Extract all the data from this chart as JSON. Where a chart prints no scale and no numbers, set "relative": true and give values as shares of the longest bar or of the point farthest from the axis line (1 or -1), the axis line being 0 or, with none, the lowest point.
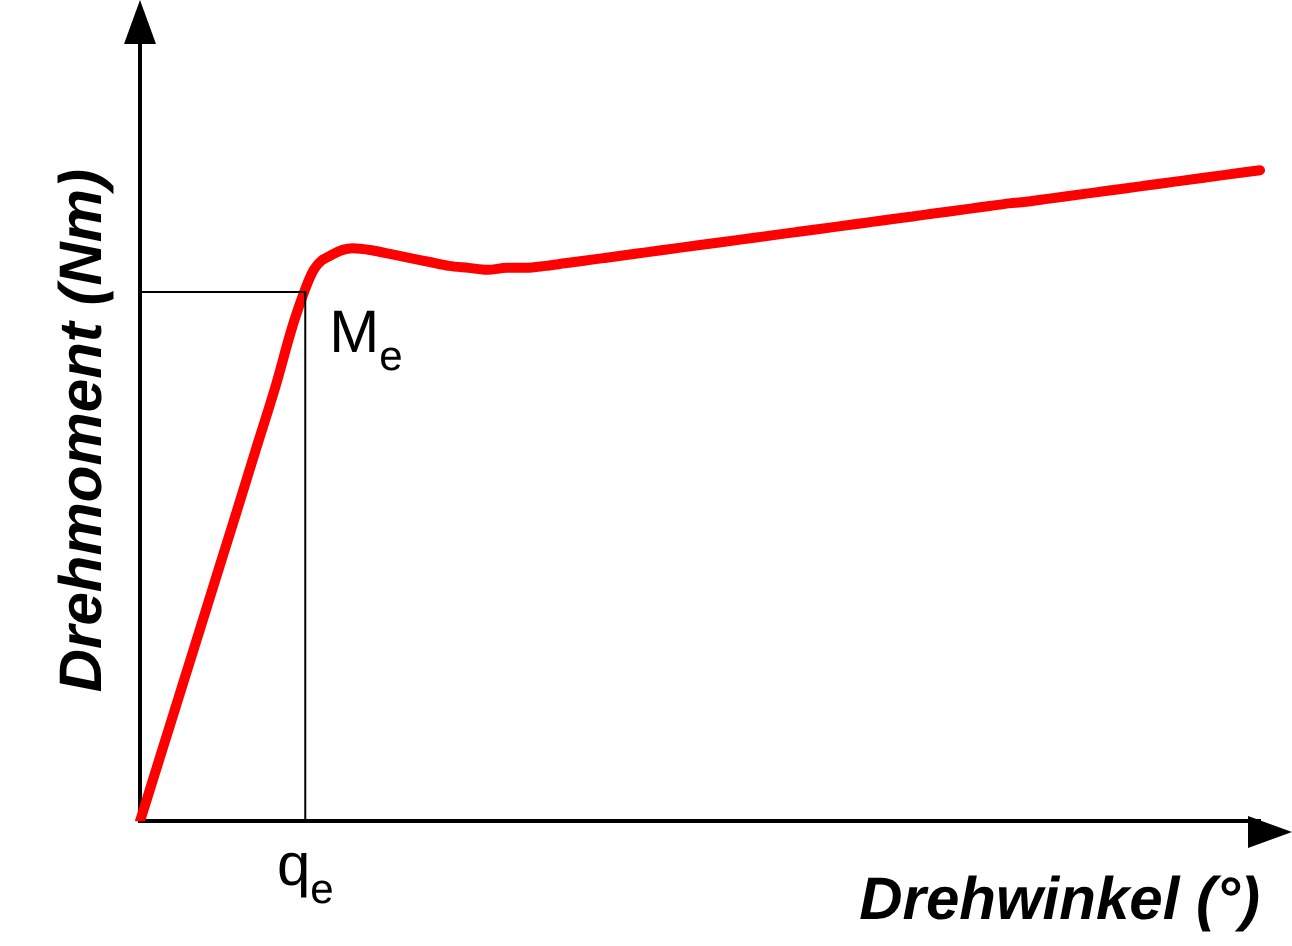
{
  "chart_data": {
    "type": "line",
    "relative": true,
    "xlabel": "Drehwinkel (°)",
    "ylabel": "Drehmoment (Nm)",
    "categories": [
      null,
      null,
      null,
      null,
      null,
      null,
      null,
      null,
      null,
      null,
      null,
      null,
      null,
      null,
      null,
      null,
      null,
      null,
      null,
      null,
      null,
      null,
      null,
      null,
      null,
      null,
      null,
      null,
      null,
      null,
      null,
      null,
      null,
      null,
      null,
      null,
      null,
      null,
      null,
      null,
      null,
      null,
      null,
      null,
      null,
      null,
      null,
      null,
      null,
      null,
      null,
      null,
      null,
      null,
      null,
      null,
      null,
      null,
      null
    ],
    "series": [
      {
        "color": "#ff0000",
        "values": [
          0,
          0.095,
          0.19,
          0.285,
          0.38,
          0.475,
          0.571,
          0.666,
          0.77,
          0.847,
          0.871,
          0.88,
          0.877,
          0.871,
          0.865,
          0.859,
          0.853,
          0.85,
          0.847,
          0.85,
          0.85,
          0.853,
          0.857,
          0.861,
          0.865,
          0.869,
          0.873,
          0.877,
          0.881,
          0.885,
          0.889,
          0.893,
          0.897,
          0.901,
          0.905,
          0.909,
          0.913,
          0.917,
          0.921,
          0.925,
          0.929,
          0.933,
          0.937,
          0.941,
          0.945,
          0.949,
          0.952,
          0.956,
          0.96,
          0.964,
          0.968,
          0.972,
          0.976,
          0.98,
          0.984,
          0.988,
          0.992,
          0.996,
          1.0
        ]
      }
    ],
    "ref_lines": [
      {
        "axis": "y",
        "value": 0.813,
        "label": "M$_{e}$",
        "color": "#000000"
      }
    ],
    "annotations": [
      "q$_{e}$"
    ],
    "grid": false,
    "legend": false,
    "marker": "none",
    "line_style": "solid"
  }
}
